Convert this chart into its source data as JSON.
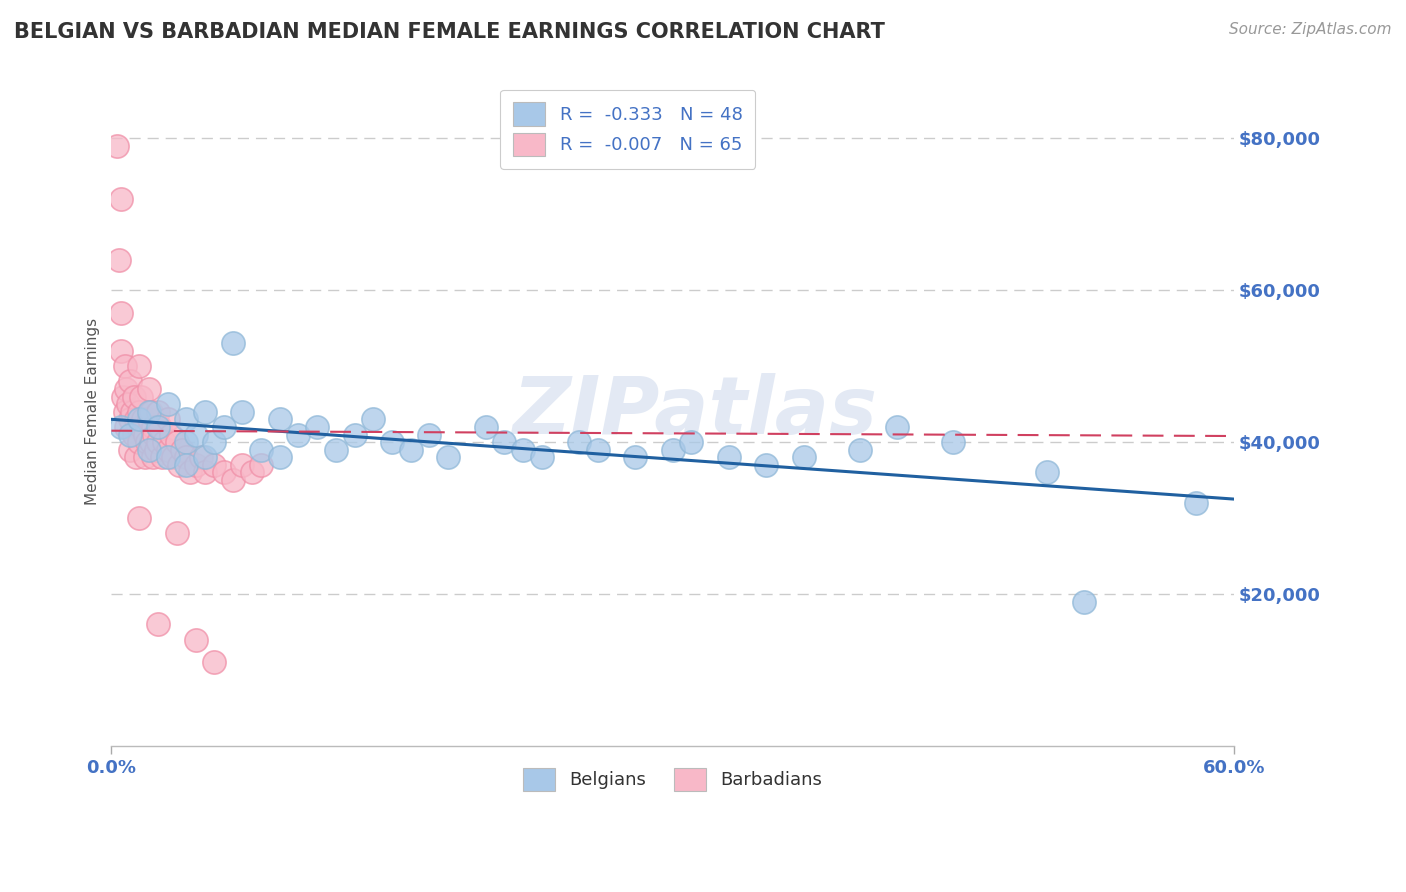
{
  "title": "BELGIAN VS BARBADIAN MEDIAN FEMALE EARNINGS CORRELATION CHART",
  "source": "Source: ZipAtlas.com",
  "xlabel_start": "0.0%",
  "xlabel_end": "60.0%",
  "ylabel": "Median Female Earnings",
  "yticks": [
    20000,
    40000,
    60000,
    80000
  ],
  "ytick_labels": [
    "$20,000",
    "$40,000",
    "$60,000",
    "$80,000"
  ],
  "xlim": [
    0.0,
    0.6
  ],
  "ylim": [
    0,
    88000
  ],
  "watermark": "ZIPatlas",
  "legend_blue_r": "R =  -0.333",
  "legend_blue_n": "N = 48",
  "legend_pink_r": "R =  -0.007",
  "legend_pink_n": "N = 65",
  "legend_blue_label": "Belgians",
  "legend_pink_label": "Barbadians",
  "blue_color": "#a8c8e8",
  "pink_color": "#f8b8c8",
  "blue_edge_color": "#90b8d8",
  "pink_edge_color": "#f090a8",
  "blue_line_color": "#2060a0",
  "pink_line_color": "#d04060",
  "blue_scatter_x": [
    0.005,
    0.01,
    0.015,
    0.02,
    0.02,
    0.025,
    0.03,
    0.03,
    0.04,
    0.04,
    0.04,
    0.045,
    0.05,
    0.05,
    0.055,
    0.06,
    0.065,
    0.07,
    0.08,
    0.09,
    0.09,
    0.1,
    0.11,
    0.12,
    0.13,
    0.14,
    0.15,
    0.16,
    0.17,
    0.18,
    0.2,
    0.21,
    0.22,
    0.23,
    0.25,
    0.26,
    0.28,
    0.3,
    0.31,
    0.33,
    0.35,
    0.37,
    0.4,
    0.42,
    0.45,
    0.5,
    0.52,
    0.58
  ],
  "blue_scatter_y": [
    42000,
    41000,
    43000,
    44000,
    39000,
    42000,
    45000,
    38000,
    43000,
    40000,
    37000,
    41000,
    44000,
    38000,
    40000,
    42000,
    53000,
    44000,
    39000,
    43000,
    38000,
    41000,
    42000,
    39000,
    41000,
    43000,
    40000,
    39000,
    41000,
    38000,
    42000,
    40000,
    39000,
    38000,
    40000,
    39000,
    38000,
    39000,
    40000,
    38000,
    37000,
    38000,
    39000,
    42000,
    40000,
    36000,
    19000,
    32000
  ],
  "pink_scatter_x": [
    0.003,
    0.004,
    0.005,
    0.005,
    0.005,
    0.006,
    0.007,
    0.007,
    0.008,
    0.008,
    0.009,
    0.01,
    0.01,
    0.01,
    0.011,
    0.012,
    0.012,
    0.013,
    0.013,
    0.014,
    0.015,
    0.015,
    0.015,
    0.016,
    0.016,
    0.017,
    0.018,
    0.018,
    0.019,
    0.02,
    0.02,
    0.021,
    0.021,
    0.022,
    0.022,
    0.023,
    0.024,
    0.025,
    0.025,
    0.026,
    0.027,
    0.028,
    0.03,
    0.03,
    0.032,
    0.033,
    0.035,
    0.036,
    0.038,
    0.04,
    0.042,
    0.045,
    0.048,
    0.05,
    0.055,
    0.06,
    0.065,
    0.07,
    0.075,
    0.08,
    0.015,
    0.025,
    0.035,
    0.045,
    0.055
  ],
  "pink_scatter_y": [
    79000,
    64000,
    72000,
    57000,
    52000,
    46000,
    50000,
    44000,
    47000,
    42000,
    45000,
    48000,
    43000,
    39000,
    44000,
    46000,
    41000,
    43000,
    38000,
    42000,
    50000,
    44000,
    40000,
    46000,
    42000,
    43000,
    41000,
    38000,
    40000,
    47000,
    43000,
    44000,
    40000,
    42000,
    38000,
    41000,
    39000,
    44000,
    40000,
    42000,
    38000,
    40000,
    43000,
    39000,
    41000,
    38000,
    40000,
    37000,
    39000,
    38000,
    36000,
    37000,
    38000,
    36000,
    37000,
    36000,
    35000,
    37000,
    36000,
    37000,
    30000,
    16000,
    28000,
    14000,
    11000
  ],
  "blue_trend_x": [
    0.0,
    0.6
  ],
  "blue_trend_y": [
    43000,
    32500
  ],
  "pink_trend_x": [
    0.0,
    0.6
  ],
  "pink_trend_y": [
    41500,
    40800
  ],
  "background_color": "#ffffff",
  "grid_color": "#cccccc",
  "tick_label_color": "#4472c4",
  "title_color": "#333333",
  "source_color": "#999999"
}
